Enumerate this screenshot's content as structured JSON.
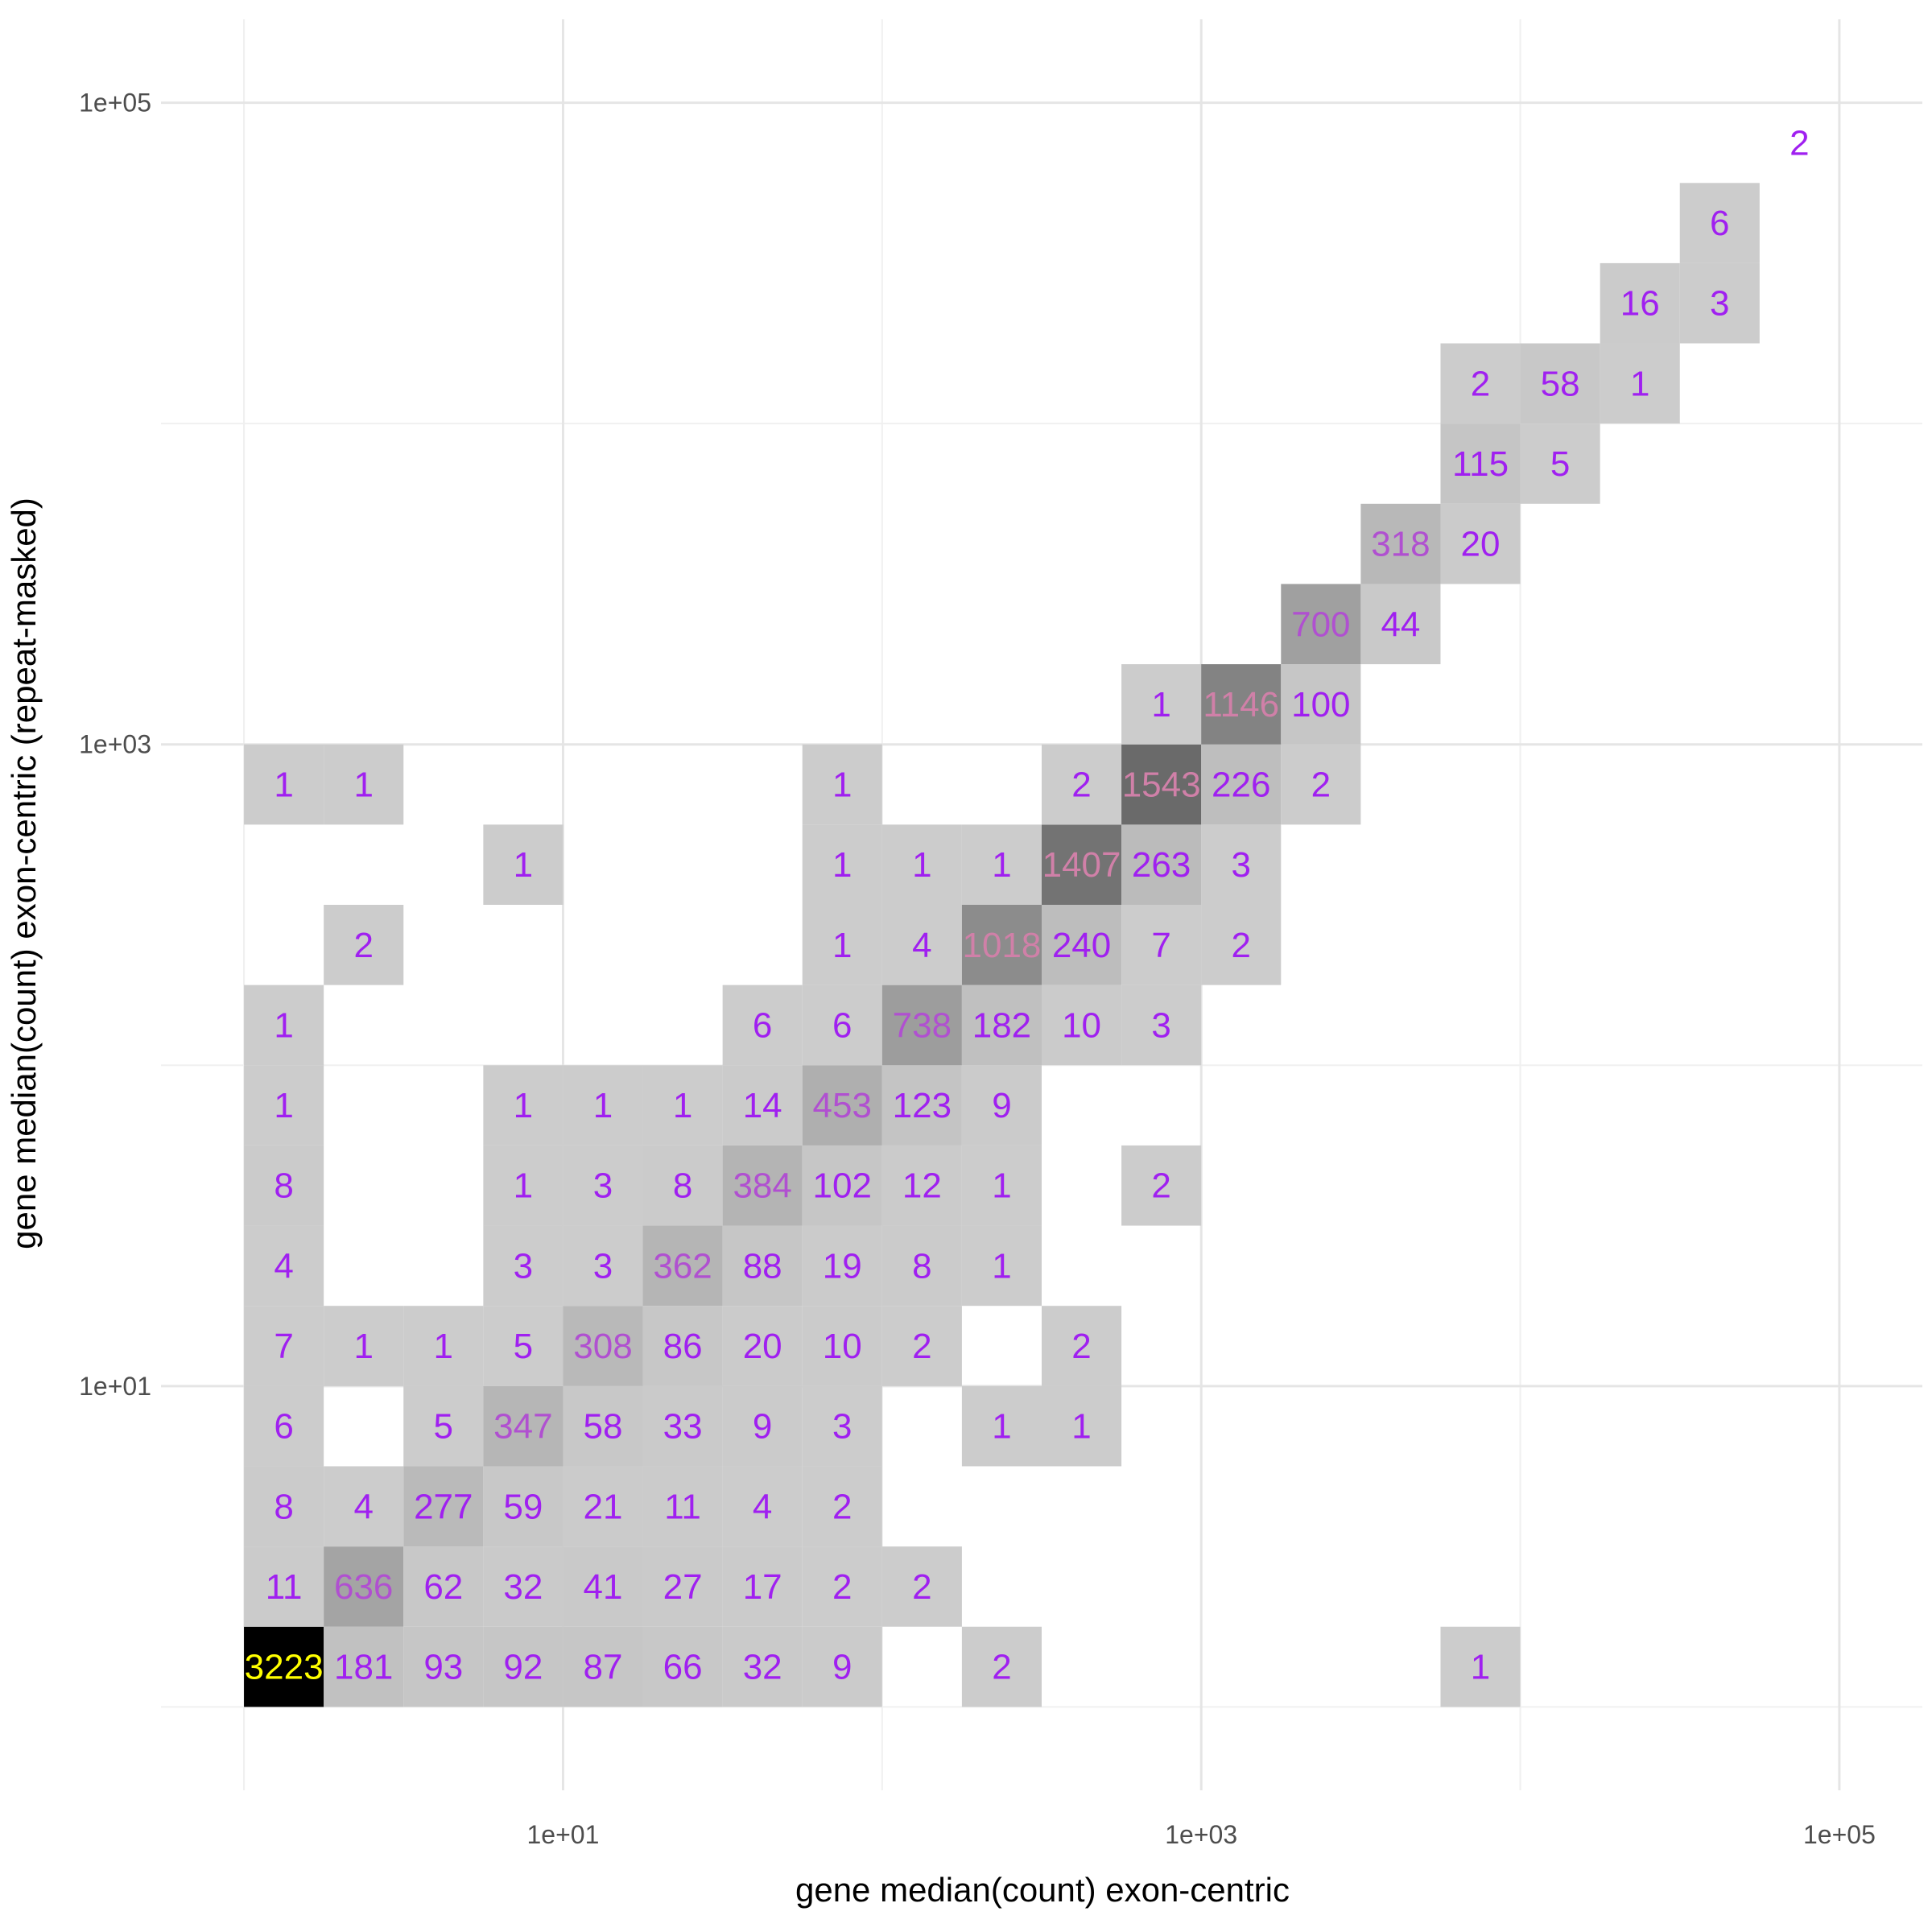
{
  "chart_data": {
    "type": "heatmap",
    "xlabel": "gene median(count) exon-centric",
    "ylabel": "gene median(count) exon-centric (repeat-masked)",
    "x_scale": "log10",
    "y_scale": "log10",
    "xlim_log10": [
      -0.26,
      5.26
    ],
    "ylim_log10": [
      -0.26,
      5.26
    ],
    "x_ticks": [
      {
        "value": 10,
        "label": "1e+01"
      },
      {
        "value": 1000,
        "label": "1e+03"
      },
      {
        "value": 100000,
        "label": "1e+05"
      }
    ],
    "y_ticks": [
      {
        "value": 10,
        "label": "1e+01"
      },
      {
        "value": 1000,
        "label": "1e+03"
      },
      {
        "value": 100000,
        "label": "1e+05"
      }
    ],
    "x_minor_log10": [
      0,
      2,
      4
    ],
    "y_minor_log10": [
      0,
      2,
      4
    ],
    "bin_width_log10": 0.25,
    "fill_scale": {
      "low_color": "#cccccc",
      "high_color": "#000000",
      "max_count": 3223,
      "empty_max_count_cell_label_color": "#ffff00"
    },
    "label_colors": {
      "low": "#a020f0",
      "mid": "#b050d0",
      "high": "#d080a8",
      "max": "#ffff00"
    },
    "grid": true,
    "legend": "none",
    "bins": [
      {
        "x_log10": 0.125,
        "y_log10": 0.125,
        "count": 3223
      },
      {
        "x_log10": 0.375,
        "y_log10": 0.125,
        "count": 181
      },
      {
        "x_log10": 0.625,
        "y_log10": 0.125,
        "count": 93
      },
      {
        "x_log10": 0.875,
        "y_log10": 0.125,
        "count": 92
      },
      {
        "x_log10": 1.125,
        "y_log10": 0.125,
        "count": 87
      },
      {
        "x_log10": 1.375,
        "y_log10": 0.125,
        "count": 66
      },
      {
        "x_log10": 1.625,
        "y_log10": 0.125,
        "count": 32
      },
      {
        "x_log10": 1.875,
        "y_log10": 0.125,
        "count": 9
      },
      {
        "x_log10": 2.375,
        "y_log10": 0.125,
        "count": 2
      },
      {
        "x_log10": 3.875,
        "y_log10": 0.125,
        "count": 1
      },
      {
        "x_log10": 0.125,
        "y_log10": 0.375,
        "count": 11
      },
      {
        "x_log10": 0.375,
        "y_log10": 0.375,
        "count": 636
      },
      {
        "x_log10": 0.625,
        "y_log10": 0.375,
        "count": 62
      },
      {
        "x_log10": 0.875,
        "y_log10": 0.375,
        "count": 32
      },
      {
        "x_log10": 1.125,
        "y_log10": 0.375,
        "count": 41
      },
      {
        "x_log10": 1.375,
        "y_log10": 0.375,
        "count": 27
      },
      {
        "x_log10": 1.625,
        "y_log10": 0.375,
        "count": 17
      },
      {
        "x_log10": 1.875,
        "y_log10": 0.375,
        "count": 2
      },
      {
        "x_log10": 2.125,
        "y_log10": 0.375,
        "count": 2
      },
      {
        "x_log10": 0.125,
        "y_log10": 0.625,
        "count": 8
      },
      {
        "x_log10": 0.375,
        "y_log10": 0.625,
        "count": 4
      },
      {
        "x_log10": 0.625,
        "y_log10": 0.625,
        "count": 277
      },
      {
        "x_log10": 0.875,
        "y_log10": 0.625,
        "count": 59
      },
      {
        "x_log10": 1.125,
        "y_log10": 0.625,
        "count": 21
      },
      {
        "x_log10": 1.375,
        "y_log10": 0.625,
        "count": 11
      },
      {
        "x_log10": 1.625,
        "y_log10": 0.625,
        "count": 4
      },
      {
        "x_log10": 1.875,
        "y_log10": 0.625,
        "count": 2
      },
      {
        "x_log10": 0.125,
        "y_log10": 0.875,
        "count": 6
      },
      {
        "x_log10": 0.625,
        "y_log10": 0.875,
        "count": 5
      },
      {
        "x_log10": 0.875,
        "y_log10": 0.875,
        "count": 347
      },
      {
        "x_log10": 1.125,
        "y_log10": 0.875,
        "count": 58
      },
      {
        "x_log10": 1.375,
        "y_log10": 0.875,
        "count": 33
      },
      {
        "x_log10": 1.625,
        "y_log10": 0.875,
        "count": 9
      },
      {
        "x_log10": 1.875,
        "y_log10": 0.875,
        "count": 3
      },
      {
        "x_log10": 2.375,
        "y_log10": 0.875,
        "count": 1
      },
      {
        "x_log10": 2.625,
        "y_log10": 0.875,
        "count": 1
      },
      {
        "x_log10": 0.125,
        "y_log10": 1.125,
        "count": 7
      },
      {
        "x_log10": 0.375,
        "y_log10": 1.125,
        "count": 1
      },
      {
        "x_log10": 0.625,
        "y_log10": 1.125,
        "count": 1
      },
      {
        "x_log10": 0.875,
        "y_log10": 1.125,
        "count": 5
      },
      {
        "x_log10": 1.125,
        "y_log10": 1.125,
        "count": 308
      },
      {
        "x_log10": 1.375,
        "y_log10": 1.125,
        "count": 86
      },
      {
        "x_log10": 1.625,
        "y_log10": 1.125,
        "count": 20
      },
      {
        "x_log10": 1.875,
        "y_log10": 1.125,
        "count": 10
      },
      {
        "x_log10": 2.125,
        "y_log10": 1.125,
        "count": 2
      },
      {
        "x_log10": 2.625,
        "y_log10": 1.125,
        "count": 2
      },
      {
        "x_log10": 0.125,
        "y_log10": 1.375,
        "count": 4
      },
      {
        "x_log10": 0.875,
        "y_log10": 1.375,
        "count": 3
      },
      {
        "x_log10": 1.125,
        "y_log10": 1.375,
        "count": 3
      },
      {
        "x_log10": 1.375,
        "y_log10": 1.375,
        "count": 362
      },
      {
        "x_log10": 1.625,
        "y_log10": 1.375,
        "count": 88
      },
      {
        "x_log10": 1.875,
        "y_log10": 1.375,
        "count": 19
      },
      {
        "x_log10": 2.125,
        "y_log10": 1.375,
        "count": 8
      },
      {
        "x_log10": 2.375,
        "y_log10": 1.375,
        "count": 1
      },
      {
        "x_log10": 0.125,
        "y_log10": 1.625,
        "count": 8
      },
      {
        "x_log10": 0.875,
        "y_log10": 1.625,
        "count": 1
      },
      {
        "x_log10": 1.125,
        "y_log10": 1.625,
        "count": 3
      },
      {
        "x_log10": 1.375,
        "y_log10": 1.625,
        "count": 8
      },
      {
        "x_log10": 1.625,
        "y_log10": 1.625,
        "count": 384
      },
      {
        "x_log10": 1.875,
        "y_log10": 1.625,
        "count": 102
      },
      {
        "x_log10": 2.125,
        "y_log10": 1.625,
        "count": 12
      },
      {
        "x_log10": 2.375,
        "y_log10": 1.625,
        "count": 1
      },
      {
        "x_log10": 2.875,
        "y_log10": 1.625,
        "count": 2
      },
      {
        "x_log10": 0.125,
        "y_log10": 1.875,
        "count": 1
      },
      {
        "x_log10": 0.875,
        "y_log10": 1.875,
        "count": 1
      },
      {
        "x_log10": 1.125,
        "y_log10": 1.875,
        "count": 1
      },
      {
        "x_log10": 1.375,
        "y_log10": 1.875,
        "count": 1
      },
      {
        "x_log10": 1.625,
        "y_log10": 1.875,
        "count": 14
      },
      {
        "x_log10": 1.875,
        "y_log10": 1.875,
        "count": 453
      },
      {
        "x_log10": 2.125,
        "y_log10": 1.875,
        "count": 123
      },
      {
        "x_log10": 2.375,
        "y_log10": 1.875,
        "count": 9
      },
      {
        "x_log10": 0.125,
        "y_log10": 2.125,
        "count": 1
      },
      {
        "x_log10": 1.625,
        "y_log10": 2.125,
        "count": 6
      },
      {
        "x_log10": 1.875,
        "y_log10": 2.125,
        "count": 6
      },
      {
        "x_log10": 2.125,
        "y_log10": 2.125,
        "count": 738
      },
      {
        "x_log10": 2.375,
        "y_log10": 2.125,
        "count": 182
      },
      {
        "x_log10": 2.625,
        "y_log10": 2.125,
        "count": 10
      },
      {
        "x_log10": 2.875,
        "y_log10": 2.125,
        "count": 3
      },
      {
        "x_log10": 0.375,
        "y_log10": 2.375,
        "count": 2
      },
      {
        "x_log10": 1.875,
        "y_log10": 2.375,
        "count": 1
      },
      {
        "x_log10": 2.125,
        "y_log10": 2.375,
        "count": 4
      },
      {
        "x_log10": 2.375,
        "y_log10": 2.375,
        "count": 1018
      },
      {
        "x_log10": 2.625,
        "y_log10": 2.375,
        "count": 240
      },
      {
        "x_log10": 2.875,
        "y_log10": 2.375,
        "count": 7
      },
      {
        "x_log10": 3.125,
        "y_log10": 2.375,
        "count": 2
      },
      {
        "x_log10": 0.875,
        "y_log10": 2.625,
        "count": 1
      },
      {
        "x_log10": 1.875,
        "y_log10": 2.625,
        "count": 1
      },
      {
        "x_log10": 2.125,
        "y_log10": 2.625,
        "count": 1
      },
      {
        "x_log10": 2.375,
        "y_log10": 2.625,
        "count": 1
      },
      {
        "x_log10": 2.625,
        "y_log10": 2.625,
        "count": 1407
      },
      {
        "x_log10": 2.875,
        "y_log10": 2.625,
        "count": 263
      },
      {
        "x_log10": 3.125,
        "y_log10": 2.625,
        "count": 3
      },
      {
        "x_log10": 0.125,
        "y_log10": 2.875,
        "count": 1
      },
      {
        "x_log10": 0.375,
        "y_log10": 2.875,
        "count": 1
      },
      {
        "x_log10": 1.875,
        "y_log10": 2.875,
        "count": 1
      },
      {
        "x_log10": 2.625,
        "y_log10": 2.875,
        "count": 2
      },
      {
        "x_log10": 2.875,
        "y_log10": 2.875,
        "count": 1543
      },
      {
        "x_log10": 3.125,
        "y_log10": 2.875,
        "count": 226
      },
      {
        "x_log10": 3.375,
        "y_log10": 2.875,
        "count": 2
      },
      {
        "x_log10": 2.875,
        "y_log10": 3.125,
        "count": 1
      },
      {
        "x_log10": 3.125,
        "y_log10": 3.125,
        "count": 1146
      },
      {
        "x_log10": 3.375,
        "y_log10": 3.125,
        "count": 100
      },
      {
        "x_log10": 3.375,
        "y_log10": 3.375,
        "count": 700
      },
      {
        "x_log10": 3.625,
        "y_log10": 3.375,
        "count": 44
      },
      {
        "x_log10": 3.625,
        "y_log10": 3.625,
        "count": 318
      },
      {
        "x_log10": 3.875,
        "y_log10": 3.625,
        "count": 20
      },
      {
        "x_log10": 3.875,
        "y_log10": 3.875,
        "count": 115
      },
      {
        "x_log10": 4.125,
        "y_log10": 3.875,
        "count": 5
      },
      {
        "x_log10": 3.875,
        "y_log10": 4.125,
        "count": 2
      },
      {
        "x_log10": 4.125,
        "y_log10": 4.125,
        "count": 58
      },
      {
        "x_log10": 4.375,
        "y_log10": 4.125,
        "count": 1
      },
      {
        "x_log10": 4.375,
        "y_log10": 4.375,
        "count": 16
      },
      {
        "x_log10": 4.625,
        "y_log10": 4.375,
        "count": 3
      },
      {
        "x_log10": 4.625,
        "y_log10": 4.625,
        "count": 6
      },
      {
        "x_log10": 4.875,
        "y_log10": 4.875,
        "count": 2,
        "fill": false
      }
    ]
  }
}
